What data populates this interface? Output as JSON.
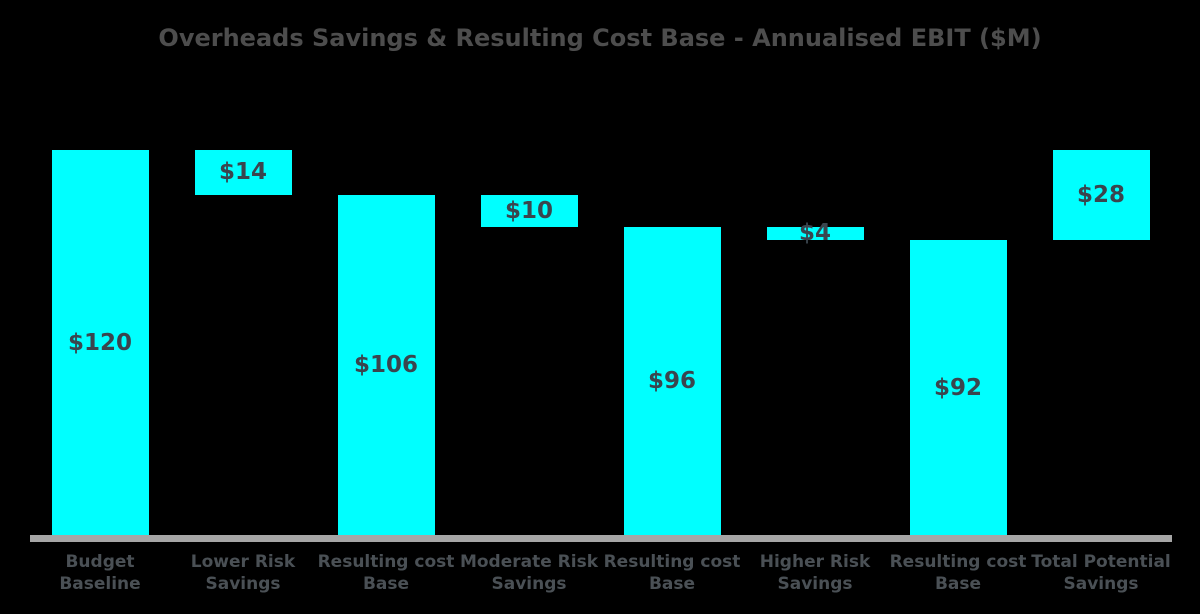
{
  "title": "Overheads Savings & Resulting Cost Base - Annualised EBIT ($M)",
  "chart_data": {
    "type": "bar",
    "subtype": "waterfall",
    "title": "Overheads Savings & Resulting Cost Base - Annualised EBIT ($M)",
    "unit": "$M",
    "ylim": [
      0,
      120
    ],
    "grid": false,
    "y_axis": "hidden",
    "x_baseline_axis": "visible",
    "legend": "none",
    "categories": [
      "Budget Baseline",
      "Lower Risk Savings",
      "Resulting cost Base",
      "Moderate Risk Savings",
      "Resulting cost Base",
      "Higher Risk Savings",
      "Resulting cost Base",
      "Total Potential Savings"
    ],
    "bars": [
      {
        "category_lines": [
          "Budget",
          "Baseline"
        ],
        "value": 120,
        "value_label": "$120",
        "start": 0,
        "end": 120,
        "role": "total"
      },
      {
        "category_lines": [
          "Lower Risk",
          "Savings"
        ],
        "value": 14,
        "value_label": "$14",
        "start": 106,
        "end": 120,
        "role": "decrease"
      },
      {
        "category_lines": [
          "Resulting cost",
          "Base"
        ],
        "value": 106,
        "value_label": "$106",
        "start": 0,
        "end": 106,
        "role": "subtotal"
      },
      {
        "category_lines": [
          "Moderate Risk",
          "Savings"
        ],
        "value": 10,
        "value_label": "$10",
        "start": 96,
        "end": 106,
        "role": "decrease"
      },
      {
        "category_lines": [
          "Resulting cost",
          "Base"
        ],
        "value": 96,
        "value_label": "$96",
        "start": 0,
        "end": 96,
        "role": "subtotal"
      },
      {
        "category_lines": [
          "Higher Risk",
          "Savings"
        ],
        "value": 4,
        "value_label": "$4",
        "start": 92,
        "end": 96,
        "role": "decrease"
      },
      {
        "category_lines": [
          "Resulting cost",
          "Base"
        ],
        "value": 92,
        "value_label": "$92",
        "start": 0,
        "end": 92,
        "role": "subtotal"
      },
      {
        "category_lines": [
          "Total Potential",
          "Savings"
        ],
        "value": 28,
        "value_label": "$28",
        "start": 92,
        "end": 120,
        "role": "total-change"
      }
    ],
    "colors": {
      "bar_fill": "#00ffff",
      "value_label": "#3a454e",
      "category_label": "#4a5055",
      "title": "#4d4d4d",
      "axis_line": "#a6a6a6",
      "background": "#000000"
    }
  }
}
